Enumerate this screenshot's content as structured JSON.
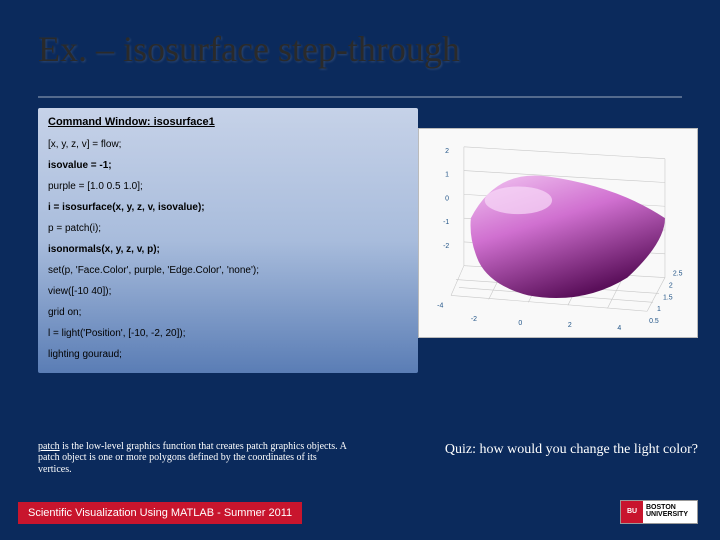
{
  "title": "Ex. – isosurface step-through",
  "command_header": "Command Window: isosurface1",
  "code_lines": [
    {
      "text": "[x, y, z, v] = flow;",
      "bold": false
    },
    {
      "text": "isovalue = -1;",
      "bold": true
    },
    {
      "text": "purple = [1.0 0.5 1.0];",
      "bold": false
    },
    {
      "text": "i = isosurface(x, y, z, v, isovalue);",
      "bold": true
    },
    {
      "text": "p = patch(i);",
      "bold": false
    },
    {
      "text": "isonormals(x, y, z, v, p);",
      "bold": true
    },
    {
      "text": "set(p, 'Face.Color', purple, 'Edge.Color', 'none');",
      "bold": false
    },
    {
      "text": "view([-10 40]);",
      "bold": false
    },
    {
      "text": "grid on;",
      "bold": false
    },
    {
      "text": "l = light('Position', [-10, -2, 20]);",
      "bold": false
    },
    {
      "text": "lighting gouraud;",
      "bold": false
    }
  ],
  "plot": {
    "type": "3d-surface",
    "background": "#f9f9f9",
    "grid_color": "#d0d0d0",
    "axis_color": "#333333",
    "surface_color_top": "#e8a8e8",
    "surface_color_mid": "#c850c8",
    "surface_color_bot": "#701470",
    "tick_fontsize": 7,
    "tick_color": "#225588",
    "z_ticks": [
      "-2",
      "-1",
      "0",
      "1",
      "2"
    ],
    "y_ticks": [
      "-4",
      "-2",
      "0",
      "2",
      "4"
    ],
    "x_ticks": [
      "0.5",
      "1",
      "1.5",
      "2",
      "2.5"
    ]
  },
  "note": {
    "underlined": "patch",
    "body": " is the low-level graphics function that creates patch graphics objects. A patch object is one or more polygons defined by the coordinates of its vertices."
  },
  "quiz": "Quiz: how would you change the light color?",
  "footer": "Scientific Visualization Using MATLAB - Summer 2011",
  "logo": {
    "univ": "BOSTON",
    "sub": "UNIVERSITY"
  },
  "colors": {
    "bg": "#0b2a5c",
    "accent_red": "#c8152d",
    "white": "#ffffff"
  }
}
